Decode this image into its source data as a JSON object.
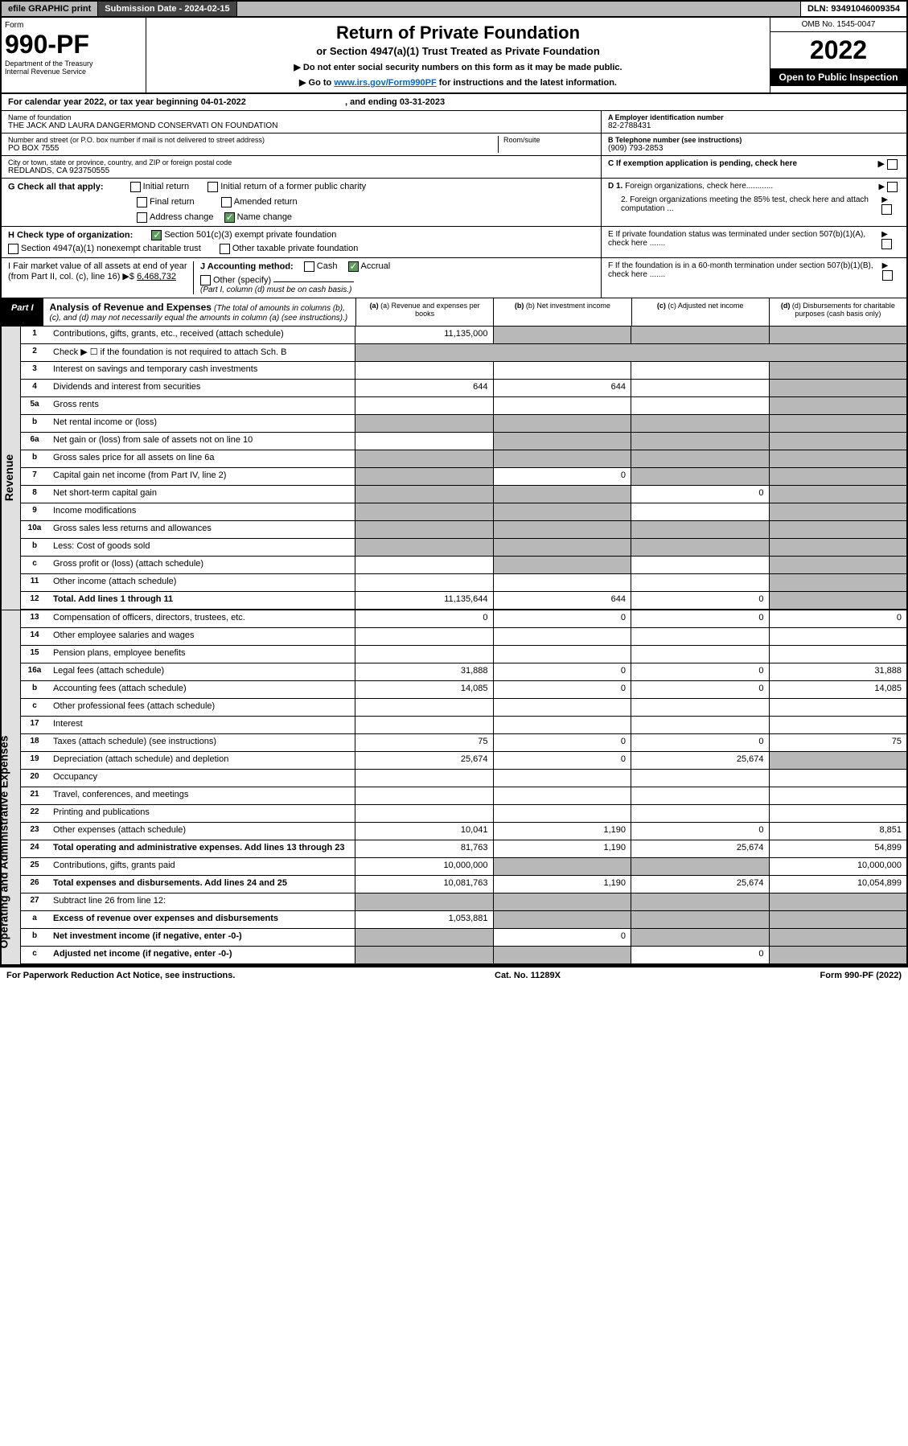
{
  "top": {
    "efile": "efile GRAPHIC print",
    "subdate_label": "Submission Date - ",
    "subdate": "2024-02-15",
    "dln_label": "DLN: ",
    "dln": "93491046009354"
  },
  "header": {
    "form_label": "Form",
    "form_num": "990-PF",
    "dept1": "Department of the Treasury",
    "dept2": "Internal Revenue Service",
    "title": "Return of Private Foundation",
    "subtitle": "or Section 4947(a)(1) Trust Treated as Private Foundation",
    "note1": "▶ Do not enter social security numbers on this form as it may be made public.",
    "note2": "▶ Go to ",
    "link": "www.irs.gov/Form990PF",
    "note2b": " for instructions and the latest information.",
    "omb": "OMB No. 1545-0047",
    "year": "2022",
    "open": "Open to Public Inspection"
  },
  "cal": {
    "text": "For calendar year 2022, or tax year beginning 04-01-2022",
    "text2": ", and ending 03-31-2023"
  },
  "info": {
    "name_label": "Name of foundation",
    "name": "THE JACK AND LAURA DANGERMOND CONSERVATI ON FOUNDATION",
    "addr_label": "Number and street (or P.O. box number if mail is not delivered to street address)",
    "addr": "PO BOX 7555",
    "room_label": "Room/suite",
    "city_label": "City or town, state or province, country, and ZIP or foreign postal code",
    "city": "REDLANDS, CA  923750555",
    "a_label": "A Employer identification number",
    "a_val": "82-2788431",
    "b_label": "B Telephone number (see instructions)",
    "b_val": "(909) 793-2853",
    "c_label": "C If exemption application is pending, check here",
    "d1": "D 1. Foreign organizations, check here............",
    "d2": "2. Foreign organizations meeting the 85% test, check here and attach computation ...",
    "e": "E  If private foundation status was terminated under section 507(b)(1)(A), check here .......",
    "f": "F  If the foundation is in a 60-month termination under section 507(b)(1)(B), check here .......",
    "g_label": "G Check all that apply:",
    "g_opts": [
      "Initial return",
      "Initial return of a former public charity",
      "Final return",
      "Amended return",
      "Address change",
      "Name change"
    ],
    "h_label": "H Check type of organization:",
    "h1": "Section 501(c)(3) exempt private foundation",
    "h2": "Section 4947(a)(1) nonexempt charitable trust",
    "h3": "Other taxable private foundation",
    "i_label": "I Fair market value of all assets at end of year (from Part II, col. (c), line 16) ▶$",
    "i_val": "6,468,732",
    "j_label": "J Accounting method:",
    "j_cash": "Cash",
    "j_accrual": "Accrual",
    "j_other": "Other (specify)",
    "j_note": "(Part I, column (d) must be on cash basis.)"
  },
  "part1": {
    "label": "Part I",
    "title": "Analysis of Revenue and Expenses",
    "subtitle": "(The total of amounts in columns (b), (c), and (d) may not necessarily equal the amounts in column (a) (see instructions).)",
    "col_a": "(a) Revenue and expenses per books",
    "col_b": "(b) Net investment income",
    "col_c": "(c) Adjusted net income",
    "col_d": "(d) Disbursements for charitable purposes (cash basis only)"
  },
  "sides": {
    "revenue": "Revenue",
    "expenses": "Operating and Administrative Expenses"
  },
  "rows": [
    {
      "n": "1",
      "l": "Contributions, gifts, grants, etc., received (attach schedule)",
      "a": "11,135,000",
      "b": "",
      "c": "",
      "d": "",
      "bg": true,
      "cg": true,
      "dg": true
    },
    {
      "n": "2",
      "l": "Check ▶ ☐ if the foundation is not required to attach Sch. B",
      "span": true
    },
    {
      "n": "3",
      "l": "Interest on savings and temporary cash investments",
      "a": "",
      "b": "",
      "c": "",
      "d": "",
      "dg": true
    },
    {
      "n": "4",
      "l": "Dividends and interest from securities",
      "a": "644",
      "b": "644",
      "c": "",
      "d": "",
      "dg": true
    },
    {
      "n": "5a",
      "l": "Gross rents",
      "a": "",
      "b": "",
      "c": "",
      "d": "",
      "dg": true
    },
    {
      "n": "b",
      "l": "Net rental income or (loss)",
      "inset": true,
      "a": "",
      "b": "",
      "c": "",
      "d": "",
      "ag": true,
      "bg": true,
      "cg": true,
      "dg": true
    },
    {
      "n": "6a",
      "l": "Net gain or (loss) from sale of assets not on line 10",
      "a": "",
      "b": "",
      "c": "",
      "d": "",
      "bg": true,
      "cg": true,
      "dg": true
    },
    {
      "n": "b",
      "l": "Gross sales price for all assets on line 6a",
      "inset": true,
      "a": "",
      "b": "",
      "c": "",
      "d": "",
      "ag": true,
      "bg": true,
      "cg": true,
      "dg": true
    },
    {
      "n": "7",
      "l": "Capital gain net income (from Part IV, line 2)",
      "a": "",
      "b": "0",
      "c": "",
      "d": "",
      "ag": true,
      "cg": true,
      "dg": true
    },
    {
      "n": "8",
      "l": "Net short-term capital gain",
      "a": "",
      "b": "",
      "c": "0",
      "d": "",
      "ag": true,
      "bg": true,
      "dg": true
    },
    {
      "n": "9",
      "l": "Income modifications",
      "a": "",
      "b": "",
      "c": "",
      "d": "",
      "ag": true,
      "bg": true,
      "dg": true
    },
    {
      "n": "10a",
      "l": "Gross sales less returns and allowances",
      "inset": true,
      "a": "",
      "b": "",
      "c": "",
      "d": "",
      "ag": true,
      "bg": true,
      "cg": true,
      "dg": true
    },
    {
      "n": "b",
      "l": "Less: Cost of goods sold",
      "inset": true,
      "a": "",
      "b": "",
      "c": "",
      "d": "",
      "ag": true,
      "bg": true,
      "cg": true,
      "dg": true
    },
    {
      "n": "c",
      "l": "Gross profit or (loss) (attach schedule)",
      "a": "",
      "b": "",
      "c": "",
      "d": "",
      "bg": true,
      "dg": true
    },
    {
      "n": "11",
      "l": "Other income (attach schedule)",
      "a": "",
      "b": "",
      "c": "",
      "d": "",
      "dg": true
    },
    {
      "n": "12",
      "l": "Total. Add lines 1 through 11",
      "bold": true,
      "a": "11,135,644",
      "b": "644",
      "c": "0",
      "d": "",
      "dg": true
    }
  ],
  "exp_rows": [
    {
      "n": "13",
      "l": "Compensation of officers, directors, trustees, etc.",
      "a": "0",
      "b": "0",
      "c": "0",
      "d": "0"
    },
    {
      "n": "14",
      "l": "Other employee salaries and wages",
      "a": "",
      "b": "",
      "c": "",
      "d": ""
    },
    {
      "n": "15",
      "l": "Pension plans, employee benefits",
      "a": "",
      "b": "",
      "c": "",
      "d": ""
    },
    {
      "n": "16a",
      "l": "Legal fees (attach schedule)",
      "a": "31,888",
      "b": "0",
      "c": "0",
      "d": "31,888"
    },
    {
      "n": "b",
      "l": "Accounting fees (attach schedule)",
      "a": "14,085",
      "b": "0",
      "c": "0",
      "d": "14,085"
    },
    {
      "n": "c",
      "l": "Other professional fees (attach schedule)",
      "a": "",
      "b": "",
      "c": "",
      "d": ""
    },
    {
      "n": "17",
      "l": "Interest",
      "a": "",
      "b": "",
      "c": "",
      "d": ""
    },
    {
      "n": "18",
      "l": "Taxes (attach schedule) (see instructions)",
      "a": "75",
      "b": "0",
      "c": "0",
      "d": "75"
    },
    {
      "n": "19",
      "l": "Depreciation (attach schedule) and depletion",
      "a": "25,674",
      "b": "0",
      "c": "25,674",
      "d": "",
      "dg": true
    },
    {
      "n": "20",
      "l": "Occupancy",
      "a": "",
      "b": "",
      "c": "",
      "d": ""
    },
    {
      "n": "21",
      "l": "Travel, conferences, and meetings",
      "a": "",
      "b": "",
      "c": "",
      "d": ""
    },
    {
      "n": "22",
      "l": "Printing and publications",
      "a": "",
      "b": "",
      "c": "",
      "d": ""
    },
    {
      "n": "23",
      "l": "Other expenses (attach schedule)",
      "a": "10,041",
      "b": "1,190",
      "c": "0",
      "d": "8,851"
    },
    {
      "n": "24",
      "l": "Total operating and administrative expenses. Add lines 13 through 23",
      "bold": true,
      "a": "81,763",
      "b": "1,190",
      "c": "25,674",
      "d": "54,899"
    },
    {
      "n": "25",
      "l": "Contributions, gifts, grants paid",
      "a": "10,000,000",
      "b": "",
      "c": "",
      "d": "10,000,000",
      "bg": true,
      "cg": true
    },
    {
      "n": "26",
      "l": "Total expenses and disbursements. Add lines 24 and 25",
      "bold": true,
      "a": "10,081,763",
      "b": "1,190",
      "c": "25,674",
      "d": "10,054,899"
    },
    {
      "n": "27",
      "l": "Subtract line 26 from line 12:",
      "a": "",
      "b": "",
      "c": "",
      "d": "",
      "ag": true,
      "bg": true,
      "cg": true,
      "dg": true
    },
    {
      "n": "a",
      "l": "Excess of revenue over expenses and disbursements",
      "bold": true,
      "a": "1,053,881",
      "b": "",
      "c": "",
      "d": "",
      "bg": true,
      "cg": true,
      "dg": true
    },
    {
      "n": "b",
      "l": "Net investment income (if negative, enter -0-)",
      "bold": true,
      "a": "",
      "b": "0",
      "c": "",
      "d": "",
      "ag": true,
      "cg": true,
      "dg": true
    },
    {
      "n": "c",
      "l": "Adjusted net income (if negative, enter -0-)",
      "bold": true,
      "a": "",
      "b": "",
      "c": "0",
      "d": "",
      "ag": true,
      "bg": true,
      "dg": true
    }
  ],
  "footer": {
    "left": "For Paperwork Reduction Act Notice, see instructions.",
    "mid": "Cat. No. 11289X",
    "right": "Form 990-PF (2022)"
  }
}
